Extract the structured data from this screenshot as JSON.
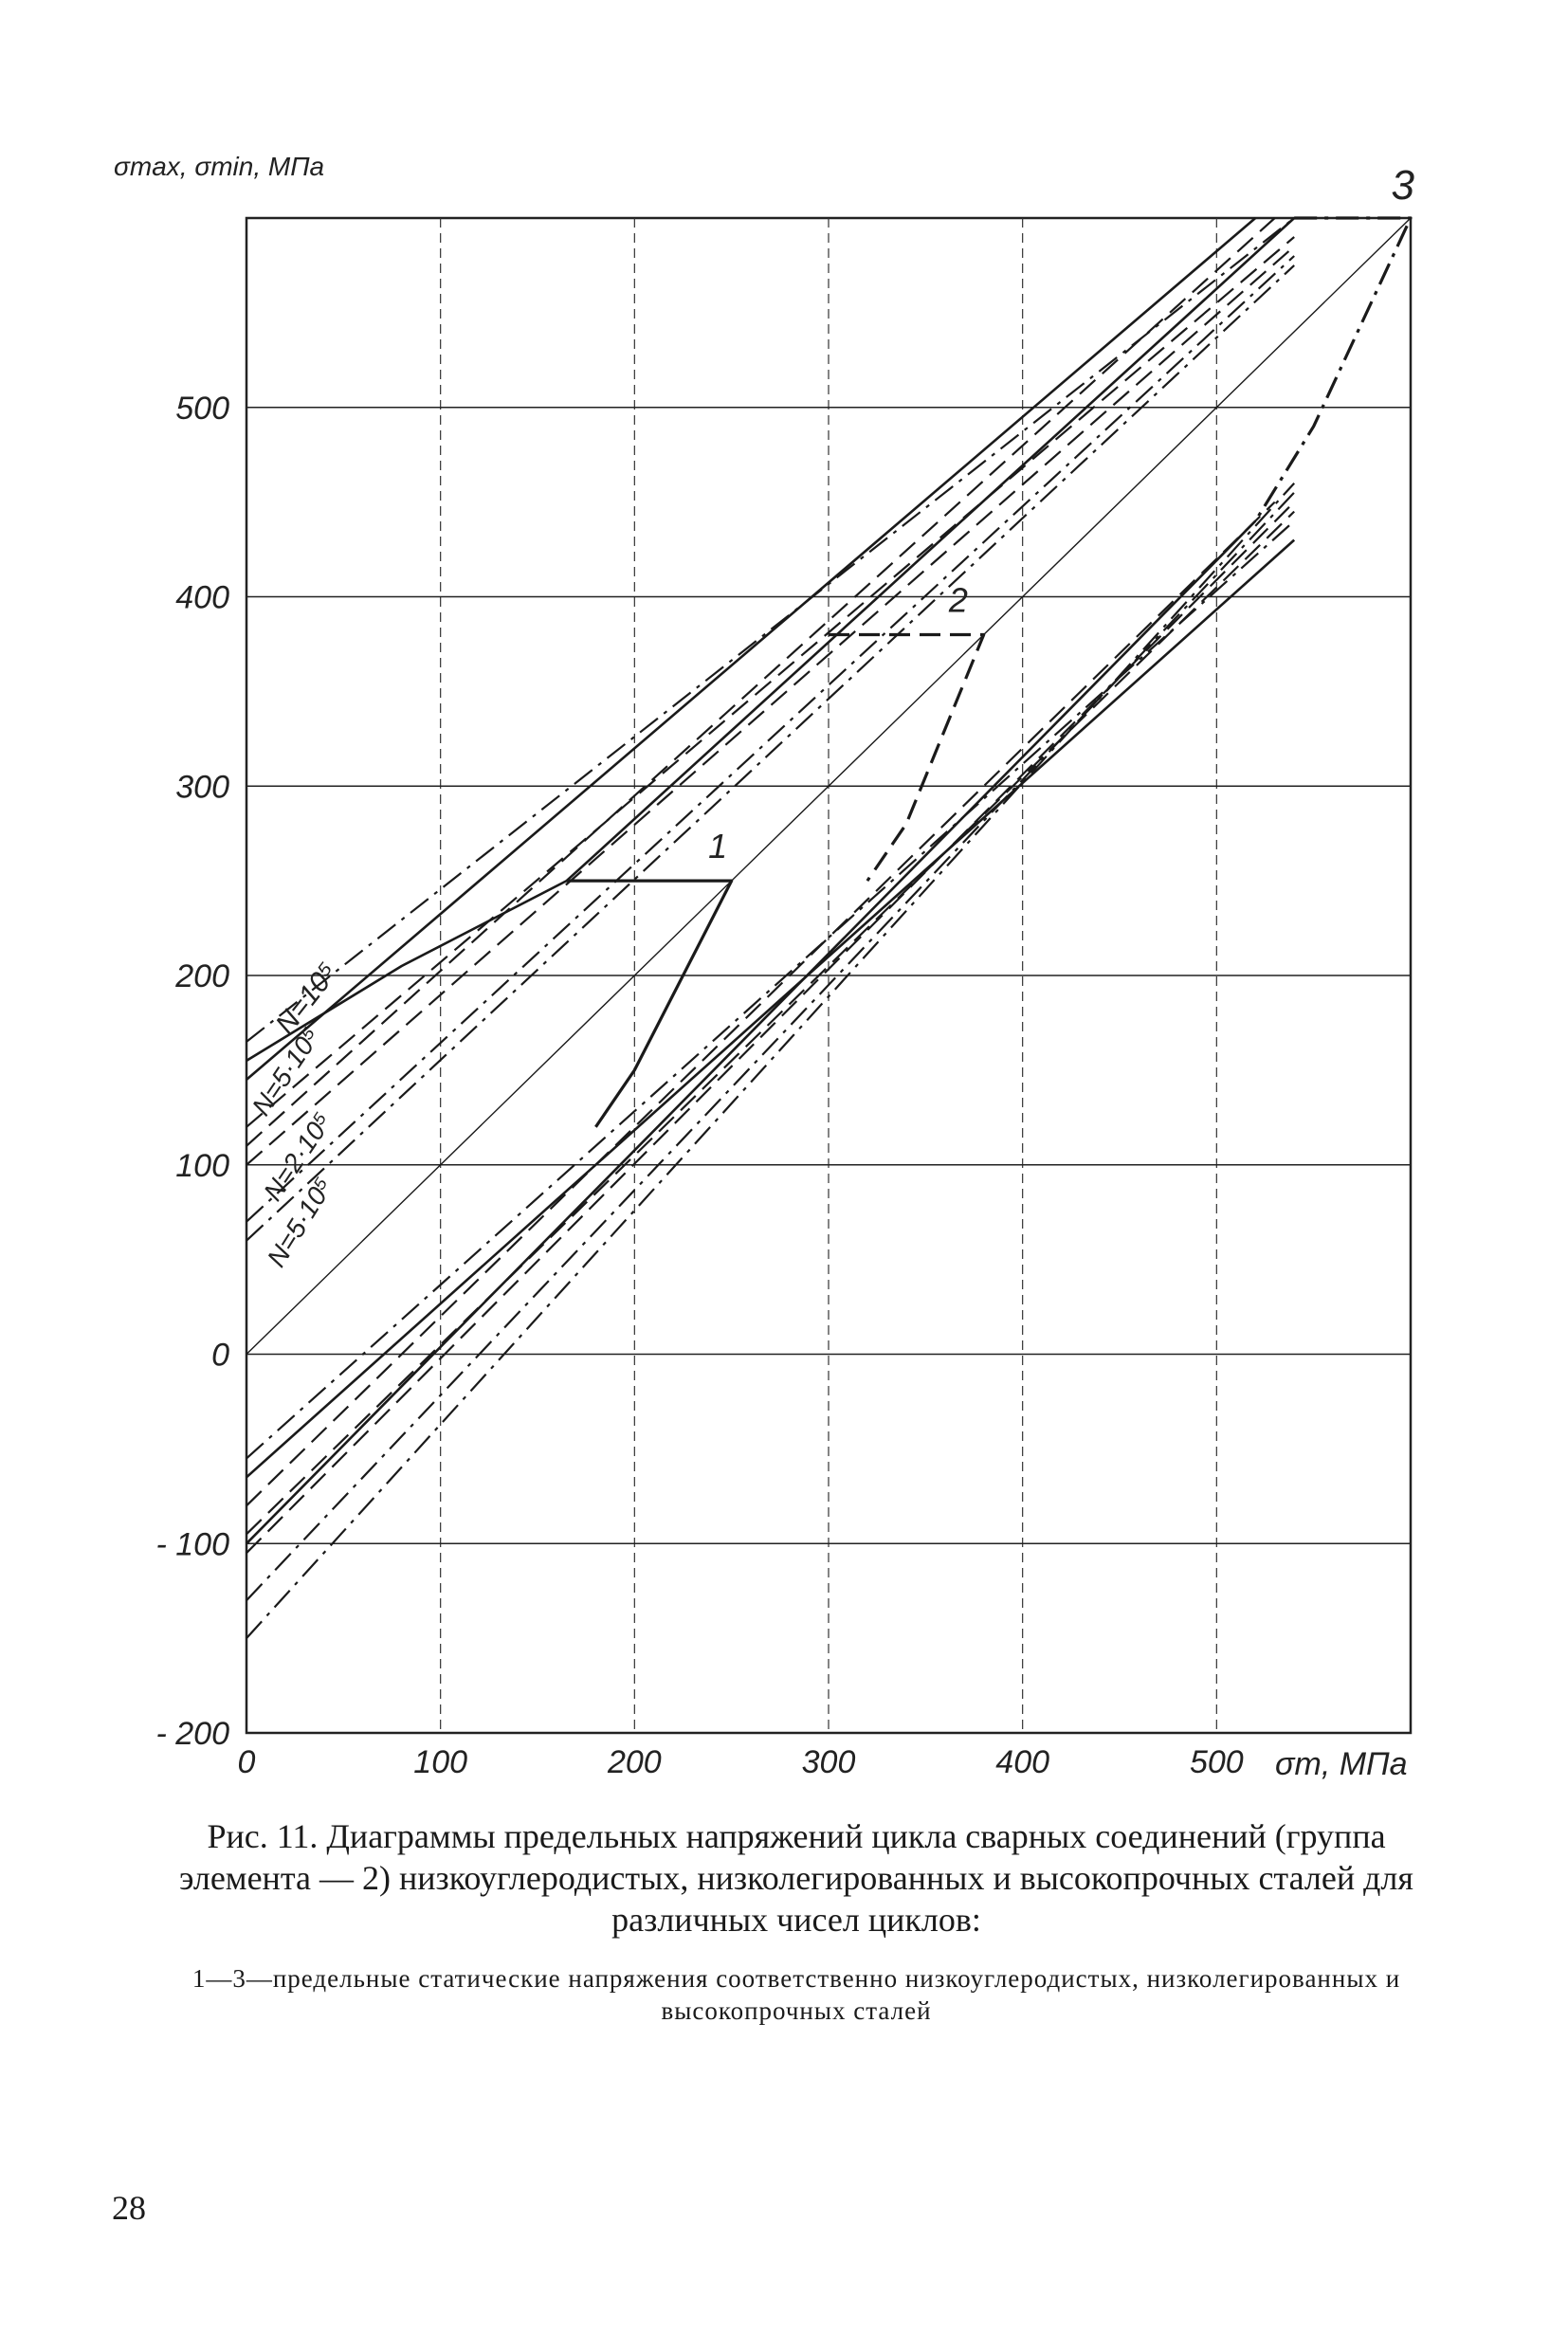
{
  "chart_data": {
    "type": "line",
    "ylabel": "σmax, σmin, МПа",
    "xlabel": "σm, МПа",
    "xlim": [
      0,
      600
    ],
    "ylim": [
      -200,
      600
    ],
    "x_ticks": [
      "0",
      "100",
      "200",
      "300",
      "400",
      "500"
    ],
    "y_ticks": [
      "- 200",
      "- 100",
      "0",
      "100",
      "200",
      "300",
      "400",
      "500"
    ],
    "grid": true,
    "annotations": {
      "curve_1": "1",
      "curve_2": "2",
      "curve_3": "3",
      "n1": "N=10⁵",
      "n2": "N=5·10⁵",
      "n3": "N=2·10⁵",
      "n4": "N=5·10⁵"
    },
    "series": [
      {
        "style": "solid",
        "upper": [
          [
            0,
            155
          ],
          [
            80,
            205
          ],
          [
            165,
            250
          ],
          [
            540,
            600
          ]
        ],
        "lower": [
          [
            0,
            -65
          ],
          [
            540,
            430
          ]
        ]
      },
      {
        "style": "dashdot",
        "upper": [
          [
            0,
            165
          ],
          [
            540,
            600
          ]
        ],
        "lower": [
          [
            0,
            -55
          ],
          [
            540,
            440
          ]
        ]
      },
      {
        "style": "dashed",
        "upper": [
          [
            0,
            120
          ],
          [
            540,
            590
          ]
        ],
        "lower": [
          [
            0,
            -95
          ],
          [
            540,
            445
          ]
        ]
      },
      {
        "style": "dashed",
        "upper": [
          [
            0,
            100
          ],
          [
            540,
            585
          ]
        ],
        "lower": [
          [
            0,
            -105
          ],
          [
            540,
            450
          ]
        ]
      },
      {
        "style": "dashdot",
        "upper": [
          [
            0,
            70
          ],
          [
            540,
            580
          ]
        ],
        "lower": [
          [
            0,
            -130
          ],
          [
            540,
            455
          ]
        ]
      },
      {
        "style": "dashdot",
        "upper": [
          [
            0,
            60
          ],
          [
            540,
            575
          ]
        ],
        "lower": [
          [
            0,
            -150
          ],
          [
            540,
            460
          ]
        ]
      },
      {
        "style": "solid",
        "upper": [
          [
            0,
            145
          ],
          [
            520,
            600
          ]
        ],
        "lower": [
          [
            0,
            -100
          ],
          [
            520,
            440
          ]
        ]
      },
      {
        "style": "dashed",
        "upper": [
          [
            0,
            110
          ],
          [
            530,
            600
          ]
        ],
        "lower": [
          [
            0,
            -80
          ],
          [
            530,
            450
          ]
        ]
      }
    ],
    "limit_curves": [
      {
        "name": "1",
        "style": "solid",
        "points": [
          [
            165,
            250
          ],
          [
            250,
            250
          ],
          [
            200,
            150
          ],
          [
            180,
            120
          ]
        ]
      },
      {
        "name": "2",
        "style": "dashed",
        "points": [
          [
            300,
            380
          ],
          [
            380,
            380
          ],
          [
            340,
            280
          ],
          [
            320,
            250
          ]
        ]
      },
      {
        "name": "3",
        "style": "dashdot",
        "points": [
          [
            540,
            600
          ],
          [
            600,
            600
          ],
          [
            550,
            490
          ],
          [
            520,
            440
          ]
        ]
      }
    ],
    "diagonal": {
      "style": "solid-thin",
      "points": [
        [
          0,
          0
        ],
        [
          600,
          600
        ]
      ]
    }
  },
  "caption": {
    "main": "Рис. 11. Диаграммы предельных напряжений цикла сварных соединений (группа элемента — 2) низкоуглеродистых, низколегированных и высокопрочных сталей для различных чисел циклов:",
    "note": "1—3—предельные статические напряжения соответственно низкоуглеродистых, низколегированных и высокопрочных сталей"
  },
  "page_number": "28"
}
